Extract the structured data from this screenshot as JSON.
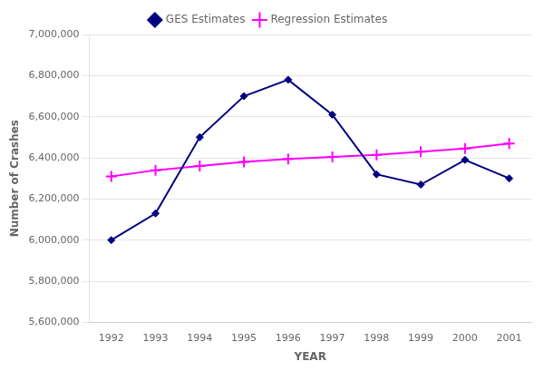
{
  "chart_data": {
    "type": "line",
    "xlabel": "YEAR",
    "ylabel": "Number of Crashes",
    "categories": [
      "1992",
      "1993",
      "1994",
      "1995",
      "1996",
      "1997",
      "1998",
      "1999",
      "2000",
      "2001"
    ],
    "series": [
      {
        "name": "GES Estimates",
        "color": "#000080",
        "marker": "diamond",
        "values": [
          6000000,
          6130000,
          6500000,
          6700000,
          6780000,
          6610000,
          6320000,
          6270000,
          6390000,
          6300000
        ]
      },
      {
        "name": "Regression Estimates",
        "color": "#FF00FF",
        "marker": "plus",
        "values": [
          6310000,
          6340000,
          6360000,
          6380000,
          6395000,
          6405000,
          6415000,
          6430000,
          6445000,
          6470000
        ]
      }
    ],
    "ylim": [
      5600000,
      7000000
    ],
    "yticks": [
      {
        "value": 5600000,
        "label": "5,600,000"
      },
      {
        "value": 5800000,
        "label": "5,800,000"
      },
      {
        "value": 6000000,
        "label": "6,000,000"
      },
      {
        "value": 6200000,
        "label": "6,200,000"
      },
      {
        "value": 6400000,
        "label": "6,400,000"
      },
      {
        "value": 6600000,
        "label": "6,600,000"
      },
      {
        "value": 6800000,
        "label": "6,800,000"
      },
      {
        "value": 7000000,
        "label": "7,000,000"
      }
    ],
    "grid": "y",
    "legend": "top"
  }
}
